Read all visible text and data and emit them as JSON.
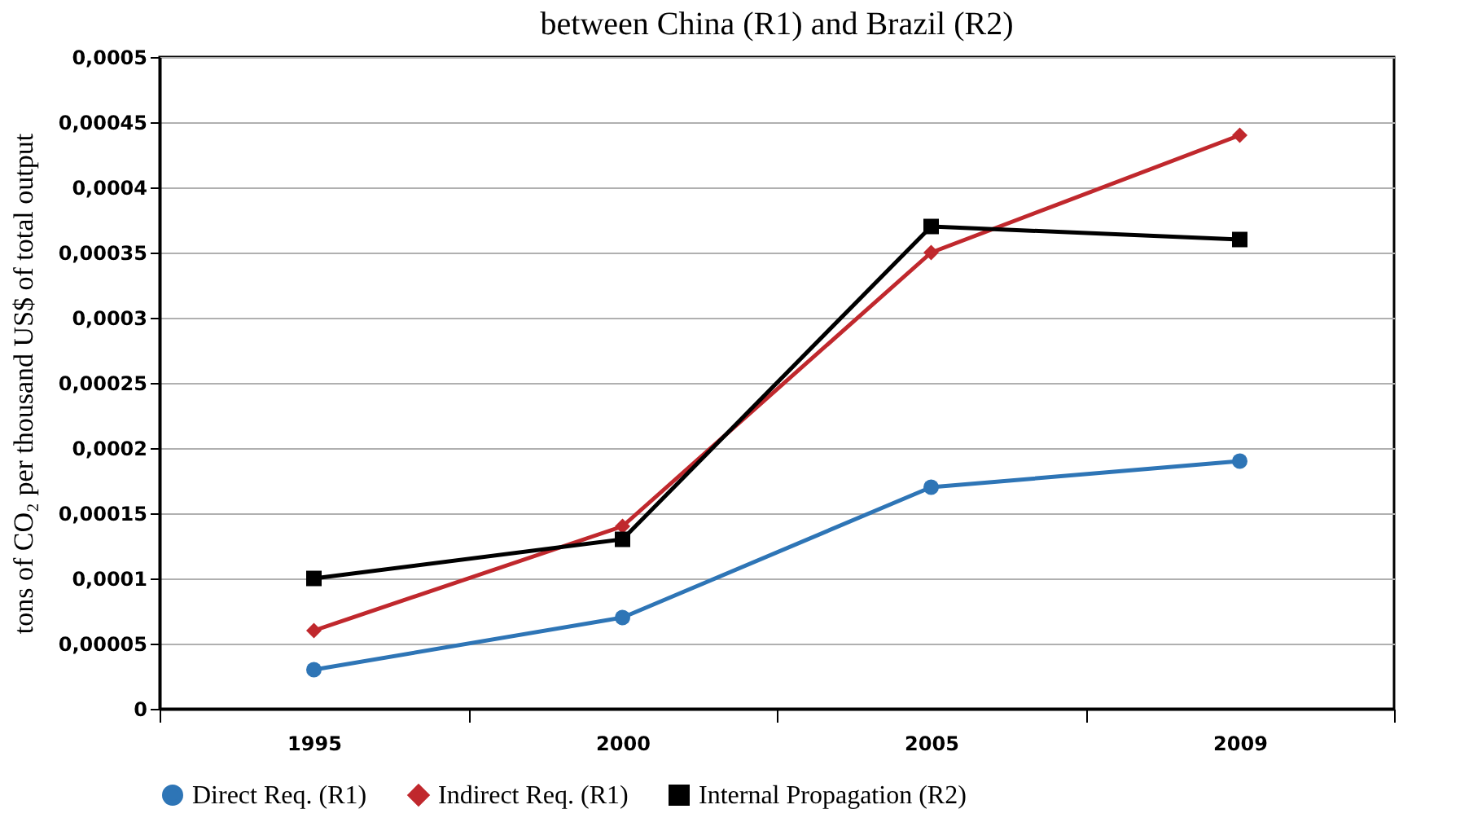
{
  "chart_data": {
    "type": "line",
    "title": "between China (R1) and Brazil (R2)",
    "ylabel": "tons of CO₂ per thousand US$ of total output",
    "categories": [
      "1995",
      "2000",
      "2005",
      "2009"
    ],
    "series": [
      {
        "name": "Direct Req. (R1)",
        "color": "#2e75b6",
        "marker": "circle",
        "values": [
          3e-05,
          7e-05,
          0.00017,
          0.00019
        ]
      },
      {
        "name": "Indirect Req. (R1)",
        "color": "#c0282d",
        "marker": "diamond",
        "values": [
          6e-05,
          0.00014,
          0.00035,
          0.00044
        ]
      },
      {
        "name": "Internal Propagation (R2)",
        "color": "#000000",
        "marker": "square",
        "values": [
          0.0001,
          0.00013,
          0.00037,
          0.00036
        ]
      }
    ],
    "ylim": [
      0,
      0.0005
    ],
    "yticks": [
      0,
      {
        "value": 5e-05,
        "label": "0,00005"
      },
      {
        "value": 0.0001,
        "label": "0,0001"
      },
      {
        "value": 0.00015,
        "label": "0,00015"
      },
      {
        "value": 0.0002,
        "label": "0,0002"
      },
      {
        "value": 0.00025,
        "label": "0,00025"
      },
      {
        "value": 0.0003,
        "label": "0,0003"
      },
      {
        "value": 0.00035,
        "label": "0,00035"
      },
      {
        "value": 0.0004,
        "label": "0,0004"
      },
      {
        "value": 0.00045,
        "label": "0,00045"
      },
      {
        "value": 0.0005,
        "label": "0,0005"
      }
    ],
    "grid": "y",
    "legend": "bottom"
  }
}
